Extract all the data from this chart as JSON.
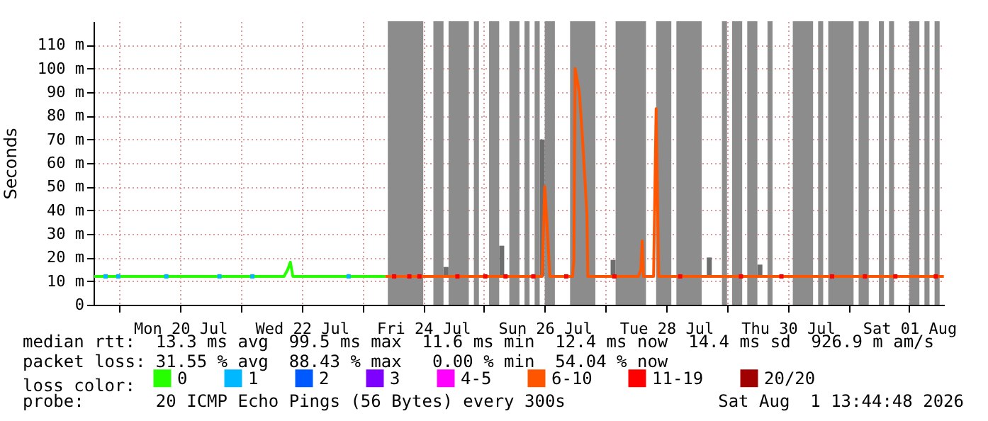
{
  "chart_data": {
    "type": "line",
    "ylabel": "Seconds",
    "legend_title": "loss color:",
    "legend": "bottom",
    "grid": true,
    "xlim": [
      "2026-07-18T13:45",
      "2026-08-01T13:45"
    ],
    "xticks": [
      {
        "value": "2026-07-19T00:00",
        "label": null
      },
      {
        "value": "2026-07-20T00:00",
        "label": "Mon 20 Jul"
      },
      {
        "value": "2026-07-21T00:00",
        "label": null
      },
      {
        "value": "2026-07-22T00:00",
        "label": "Wed 22 Jul"
      },
      {
        "value": "2026-07-23T00:00",
        "label": null
      },
      {
        "value": "2026-07-24T00:00",
        "label": "Fri 24 Jul"
      },
      {
        "value": "2026-07-25T00:00",
        "label": null
      },
      {
        "value": "2026-07-26T00:00",
        "label": "Sun 26 Jul"
      },
      {
        "value": "2026-07-27T00:00",
        "label": null
      },
      {
        "value": "2026-07-28T00:00",
        "label": "Tue 28 Jul"
      },
      {
        "value": "2026-07-29T00:00",
        "label": null
      },
      {
        "value": "2026-07-30T00:00",
        "label": "Thu 30 Jul"
      },
      {
        "value": "2026-07-31T00:00",
        "label": null
      },
      {
        "value": "2026-08-01T00:00",
        "label": "Sat 01 Aug"
      }
    ],
    "ylim": [
      0,
      120
    ],
    "yticks": [
      0,
      {
        "value": 10,
        "label": "10 m"
      },
      {
        "value": 20,
        "label": "20 m"
      },
      {
        "value": 30,
        "label": "30 m"
      },
      {
        "value": 40,
        "label": "40 m"
      },
      {
        "value": 50,
        "label": "50 m"
      },
      {
        "value": 60,
        "label": "60 m"
      },
      {
        "value": 70,
        "label": "70 m"
      },
      {
        "value": 80,
        "label": "80 m"
      },
      {
        "value": 90,
        "label": "90 m"
      },
      {
        "value": 100,
        "label": "100 m"
      },
      {
        "value": 110,
        "label": "110 m"
      }
    ],
    "series": [
      {
        "type": "bar",
        "color": "#6e6e6e",
        "x": [
          "2026-07-24T09:00",
          "2026-07-25T07:00",
          "2026-07-25T23:00",
          "2026-07-27T03:00",
          "2026-07-28T17:00",
          "2026-07-29T13:00"
        ],
        "values": [
          4,
          13,
          58,
          7,
          8,
          5
        ],
        "base": [
          12,
          12,
          12,
          12,
          12,
          12
        ]
      },
      {
        "name": "0",
        "color": "#26ff00",
        "x": [
          "2026-07-18T14:00",
          "2026-07-21T17:00",
          "2026-07-21T18:30",
          "2026-07-21T19:30",
          "2026-07-21T20:30",
          "2026-07-23T09:00"
        ],
        "values": [
          12,
          12,
          15,
          18,
          12,
          12
        ]
      },
      {
        "name": "1",
        "type": "scatter",
        "marker": "square",
        "color": "#00b8ff",
        "x": [
          "2026-07-18T18:30",
          "2026-07-18T23:30",
          "2026-07-19T18:30",
          "2026-07-20T15:30",
          "2026-07-21T04:30",
          "2026-07-22T18:30"
        ],
        "values": [
          12,
          12,
          12,
          12,
          12,
          12
        ]
      },
      {
        "name": "2",
        "color": "#0059ff"
      },
      {
        "name": "3",
        "color": "#7e00ff"
      },
      {
        "name": "4-5",
        "color": "#ff00ff"
      },
      {
        "name": "6-10",
        "color": "#ff5500",
        "x": [
          "2026-07-23T09:00",
          "2026-07-25T23:00",
          "2026-07-26T00:00",
          "2026-07-26T01:00",
          "2026-07-26T02:00",
          "2026-07-26T11:00",
          "2026-07-26T11:30",
          "2026-07-26T12:00",
          "2026-07-26T13:40",
          "2026-07-26T15:00",
          "2026-07-26T16:40",
          "2026-07-26T17:00",
          "2026-07-27T13:00",
          "2026-07-27T14:00",
          "2026-07-27T14:30",
          "2026-07-27T15:00",
          "2026-07-27T19:00",
          "2026-07-27T20:00",
          "2026-07-27T21:00",
          "2026-08-01T13:40"
        ],
        "values": [
          12,
          12,
          50,
          32,
          12,
          12,
          19,
          100,
          90,
          69,
          38,
          12,
          12,
          15,
          27,
          12,
          12,
          83,
          12,
          12
        ]
      },
      {
        "name": "11-19",
        "type": "scatter",
        "marker": "square",
        "color": "#ff0000",
        "x": [
          "2026-07-23T12:30",
          "2026-07-23T18:30",
          "2026-07-23T22:30",
          "2026-07-24T13:30",
          "2026-07-25T00:30",
          "2026-07-25T08:30",
          "2026-07-25T19:30",
          "2026-07-26T08:30",
          "2026-07-27T03:30",
          "2026-07-28T05:30",
          "2026-07-29T05:30",
          "2026-07-29T21:30",
          "2026-07-30T17:30",
          "2026-07-31T06:30",
          "2026-07-31T18:30",
          "2026-08-01T10:30"
        ],
        "values": [
          12,
          12,
          12,
          12,
          12,
          12,
          12,
          12,
          12,
          12,
          12,
          12,
          12,
          12,
          12,
          12
        ]
      },
      {
        "name": "20/20",
        "color": "#a00000"
      }
    ],
    "bands": [
      {
        "axis": "x",
        "from": "2026-07-23T10:00",
        "to": "2026-07-24T00:00",
        "color": "#8c8c8c"
      },
      {
        "axis": "x",
        "from": "2026-07-24T04:00",
        "to": "2026-07-24T08:00",
        "color": "#8c8c8c"
      },
      {
        "axis": "x",
        "from": "2026-07-24T10:00",
        "to": "2026-07-24T18:00",
        "color": "#8c8c8c"
      },
      {
        "axis": "x",
        "from": "2026-07-24T20:00",
        "to": "2026-07-24T22:00",
        "color": "#8c8c8c"
      },
      {
        "axis": "x",
        "from": "2026-07-25T02:00",
        "to": "2026-07-25T06:00",
        "color": "#8c8c8c"
      },
      {
        "axis": "x",
        "from": "2026-07-25T10:00",
        "to": "2026-07-25T14:00",
        "color": "#8c8c8c"
      },
      {
        "axis": "x",
        "from": "2026-07-25T16:00",
        "to": "2026-07-25T18:00",
        "color": "#8c8c8c"
      },
      {
        "axis": "x",
        "from": "2026-07-25T20:00",
        "to": "2026-07-25T22:00",
        "color": "#8c8c8c"
      },
      {
        "axis": "x",
        "from": "2026-07-26T00:00",
        "to": "2026-07-26T04:00",
        "color": "#8c8c8c"
      },
      {
        "axis": "x",
        "from": "2026-07-26T10:00",
        "to": "2026-07-26T20:00",
        "color": "#8c8c8c"
      },
      {
        "axis": "x",
        "from": "2026-07-27T04:00",
        "to": "2026-07-27T16:00",
        "color": "#8c8c8c"
      },
      {
        "axis": "x",
        "from": "2026-07-27T20:00",
        "to": "2026-07-28T02:00",
        "color": "#8c8c8c"
      },
      {
        "axis": "x",
        "from": "2026-07-28T04:00",
        "to": "2026-07-28T14:00",
        "color": "#8c8c8c"
      },
      {
        "axis": "x",
        "from": "2026-07-28T22:00",
        "to": "2026-07-29T00:00",
        "color": "#8c8c8c"
      },
      {
        "axis": "x",
        "from": "2026-07-29T02:00",
        "to": "2026-07-29T06:00",
        "color": "#8c8c8c"
      },
      {
        "axis": "x",
        "from": "2026-07-29T08:00",
        "to": "2026-07-29T12:00",
        "color": "#8c8c8c"
      },
      {
        "axis": "x",
        "from": "2026-07-29T16:00",
        "to": "2026-07-29T18:00",
        "color": "#8c8c8c"
      },
      {
        "axis": "x",
        "from": "2026-07-30T02:00",
        "to": "2026-07-30T10:00",
        "color": "#8c8c8c"
      },
      {
        "axis": "x",
        "from": "2026-07-30T12:00",
        "to": "2026-07-30T14:00",
        "color": "#8c8c8c"
      },
      {
        "axis": "x",
        "from": "2026-07-30T16:00",
        "to": "2026-07-31T02:00",
        "color": "#8c8c8c"
      },
      {
        "axis": "x",
        "from": "2026-07-31T04:00",
        "to": "2026-07-31T08:00",
        "color": "#8c8c8c"
      },
      {
        "axis": "x",
        "from": "2026-07-31T12:00",
        "to": "2026-07-31T14:00",
        "color": "#8c8c8c"
      },
      {
        "axis": "x",
        "from": "2026-07-31T16:00",
        "to": "2026-07-31T18:00",
        "color": "#8c8c8c"
      },
      {
        "axis": "x",
        "from": "2026-08-01T00:00",
        "to": "2026-08-01T04:00",
        "color": "#8c8c8c"
      },
      {
        "axis": "x",
        "from": "2026-08-01T06:00",
        "to": "2026-08-01T08:00",
        "color": "#8c8c8c"
      },
      {
        "axis": "x",
        "from": "2026-08-01T10:00",
        "to": "2026-08-01T12:00",
        "color": "#8c8c8c"
      }
    ],
    "annotations": [
      "median rtt:  13.3 ms avg  99.5 ms max  11.6 ms min  12.4 ms now  14.4 ms sd  926.9 m am/s",
      "packet loss: 31.55 % avg  88.43 % max   0.00 % min  54.04 % now",
      "probe:       20 ICMP Echo Pings (56 Bytes) every 300s",
      "Sat Aug  1 13:44:48 2026"
    ]
  }
}
